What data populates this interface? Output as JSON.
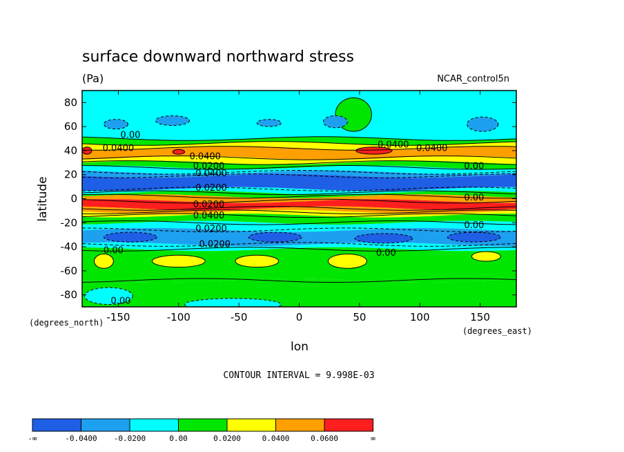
{
  "chart_data": {
    "type": "heatmap",
    "title": "surface downward northward stress",
    "units": "(Pa)",
    "dataset_label": "NCAR_control5n",
    "xlabel": "lon",
    "ylabel": "latitude",
    "x_units": "(degrees_east)",
    "y_units": "(degrees_north)",
    "xlim": [
      -180,
      180
    ],
    "ylim": [
      -90,
      90
    ],
    "x_ticks": [
      -150,
      -100,
      -50,
      0,
      50,
      100,
      150
    ],
    "x_tick_labels": [
      "-150",
      "-100",
      "-50",
      "0",
      "50",
      "100",
      "150"
    ],
    "y_ticks": [
      80,
      60,
      40,
      20,
      0,
      -20,
      -40,
      -60,
      -80
    ],
    "y_tick_labels": [
      "80",
      "60",
      "40",
      "20",
      "0",
      "-20",
      "-40",
      "-60",
      "-80"
    ],
    "contour_interval_text": "CONTOUR INTERVAL = 9.998E-03",
    "levels": [
      -0.04,
      -0.02,
      0.0,
      0.02,
      0.04,
      0.06
    ],
    "colorbar": {
      "colors": [
        "#1e5fe6",
        "#1ea0f0",
        "#00ffff",
        "#00e600",
        "#ffff00",
        "#ffa000",
        "#ff1e1e"
      ],
      "labels": [
        "-∞",
        "-0.0400",
        "-0.0200",
        "0.00",
        "0.0200",
        "0.0400",
        "0.0600",
        "∞"
      ]
    },
    "zonal_bands": [
      {
        "lat_min": 50,
        "lat_max": 90,
        "value": -0.01
      },
      {
        "lat_min": 46,
        "lat_max": 50,
        "value": 0.01
      },
      {
        "lat_min": 42,
        "lat_max": 46,
        "value": 0.03
      },
      {
        "lat_min": 34,
        "lat_max": 42,
        "value": 0.045
      },
      {
        "lat_min": 30,
        "lat_max": 34,
        "value": 0.03
      },
      {
        "lat_min": 26,
        "lat_max": 30,
        "value": 0.01
      },
      {
        "lat_min": 22,
        "lat_max": 26,
        "value": -0.01
      },
      {
        "lat_min": 19,
        "lat_max": 22,
        "value": -0.03
      },
      {
        "lat_min": 8,
        "lat_max": 19,
        "value": -0.05
      },
      {
        "lat_min": 5,
        "lat_max": 8,
        "value": -0.01
      },
      {
        "lat_min": 2,
        "lat_max": 5,
        "value": 0.01
      },
      {
        "lat_min": -2,
        "lat_max": 2,
        "value": 0.045
      },
      {
        "lat_min": -8,
        "lat_max": -2,
        "value": 0.07
      },
      {
        "lat_min": -11,
        "lat_max": -8,
        "value": 0.045
      },
      {
        "lat_min": -14,
        "lat_max": -11,
        "value": 0.03
      },
      {
        "lat_min": -20,
        "lat_max": -14,
        "value": 0.01
      },
      {
        "lat_min": -26,
        "lat_max": -20,
        "value": -0.01
      },
      {
        "lat_min": -38,
        "lat_max": -26,
        "value": -0.03
      },
      {
        "lat_min": -42,
        "lat_max": -38,
        "value": -0.01
      },
      {
        "lat_min": -68,
        "lat_max": -42,
        "value": 0.01
      },
      {
        "lat_min": -90,
        "lat_max": -68,
        "value": 0.005
      }
    ],
    "features": [
      {
        "lon": 45,
        "lat": 70,
        "rlon": 15,
        "rlat": 14,
        "value": 0.01
      },
      {
        "lon": -152,
        "lat": 62,
        "rlon": 10,
        "rlat": 4,
        "value": -0.03
      },
      {
        "lon": 30,
        "lat": 64,
        "rlon": 10,
        "rlat": 5,
        "value": -0.03
      },
      {
        "lon": 152,
        "lat": 62,
        "rlon": 13,
        "rlat": 6,
        "value": -0.03
      },
      {
        "lon": -105,
        "lat": 65,
        "rlon": 14,
        "rlat": 4,
        "value": -0.03
      },
      {
        "lon": -25,
        "lat": 63,
        "rlon": 10,
        "rlat": 3,
        "value": -0.03
      },
      {
        "lon": 62,
        "lat": 40,
        "rlon": 15,
        "rlat": 3,
        "value": 0.065
      },
      {
        "lon": -100,
        "lat": 39,
        "rlon": 5,
        "rlat": 2,
        "value": 0.065
      },
      {
        "lon": -176,
        "lat": 40,
        "rlon": 4,
        "rlat": 3,
        "value": 0.065
      },
      {
        "lon": -140,
        "lat": -32,
        "rlon": 22,
        "rlat": 4,
        "value": -0.05
      },
      {
        "lon": -20,
        "lat": -32,
        "rlon": 22,
        "rlat": 4,
        "value": -0.05
      },
      {
        "lon": 70,
        "lat": -33,
        "rlon": 24,
        "rlat": 4,
        "value": -0.05
      },
      {
        "lon": 145,
        "lat": -32,
        "rlon": 22,
        "rlat": 4,
        "value": -0.05
      },
      {
        "lon": -162,
        "lat": -52,
        "rlon": 8,
        "rlat": 6,
        "value": 0.03
      },
      {
        "lon": -100,
        "lat": -52,
        "rlon": 22,
        "rlat": 5,
        "value": 0.03
      },
      {
        "lon": -35,
        "lat": -52,
        "rlon": 18,
        "rlat": 5,
        "value": 0.03
      },
      {
        "lon": 40,
        "lat": -52,
        "rlon": 16,
        "rlat": 6,
        "value": 0.03
      },
      {
        "lon": 155,
        "lat": -48,
        "rlon": 12,
        "rlat": 4,
        "value": 0.03
      },
      {
        "lon": -158,
        "lat": -81,
        "rlon": 20,
        "rlat": 7,
        "value": -0.01
      },
      {
        "lon": -55,
        "lat": -88,
        "rlon": 40,
        "rlat": 5,
        "value": -0.01
      }
    ],
    "contour_labels": [
      {
        "text": "0.00",
        "lon": -140,
        "lat": 53
      },
      {
        "text": "0.0400",
        "lon": -150,
        "lat": 42
      },
      {
        "text": "0.0400",
        "lon": 110,
        "lat": 42
      },
      {
        "text": "0.0400",
        "lon": 78,
        "lat": 45
      },
      {
        "text": "0.0400",
        "lon": -78,
        "lat": 35
      },
      {
        "text": "0.0200",
        "lon": -75,
        "lat": 27
      },
      {
        "text": "0.0400",
        "lon": -73,
        "lat": 21
      },
      {
        "text": "0.0200",
        "lon": -73,
        "lat": 9
      },
      {
        "text": "0.00",
        "lon": 145,
        "lat": 27
      },
      {
        "text": "0.00",
        "lon": 145,
        "lat": 1
      },
      {
        "text": "0.0200",
        "lon": -75,
        "lat": -5
      },
      {
        "text": "0.0400",
        "lon": -75,
        "lat": -14
      },
      {
        "text": "0.00",
        "lon": 145,
        "lat": -22
      },
      {
        "text": "0.0200",
        "lon": -73,
        "lat": -25
      },
      {
        "text": "0.0200",
        "lon": -70,
        "lat": -38
      },
      {
        "text": "0.00",
        "lon": -154,
        "lat": -43
      },
      {
        "text": "0.00",
        "lon": 72,
        "lat": -45
      },
      {
        "text": "0.00",
        "lon": -148,
        "lat": -85
      }
    ]
  }
}
